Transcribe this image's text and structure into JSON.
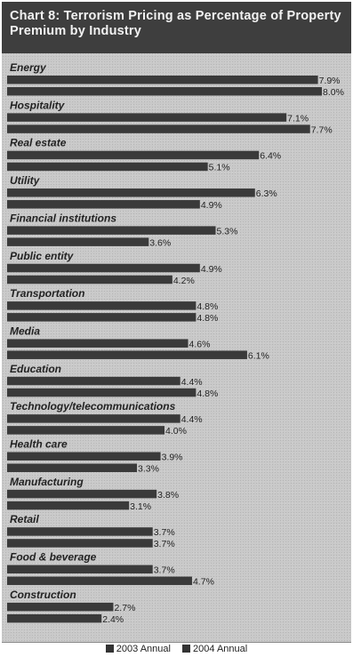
{
  "chart_data": {
    "type": "bar",
    "orientation": "horizontal",
    "title": "Chart 8: Terrorism Pricing as Percentage of Property Premium by Industry",
    "categories": [
      "Energy",
      "Hospitality",
      "Real estate",
      "Utility",
      "Financial institutions",
      "Public entity",
      "Transportation",
      "Media",
      "Education",
      "Technology/telecommunications",
      "Health care",
      "Manufacturing",
      "Retail",
      "Food & beverage",
      "Construction"
    ],
    "series": [
      {
        "name": "2003 Annual",
        "values": [
          7.9,
          7.1,
          6.4,
          6.3,
          5.3,
          4.9,
          4.8,
          4.6,
          4.4,
          4.4,
          3.9,
          3.8,
          3.7,
          3.7,
          2.7
        ]
      },
      {
        "name": "2004 Annual",
        "values": [
          8.0,
          7.7,
          5.1,
          4.9,
          3.6,
          4.2,
          4.8,
          6.1,
          4.8,
          4.0,
          3.3,
          3.1,
          3.7,
          4.7,
          2.4
        ]
      }
    ],
    "value_labels": [
      [
        "7.9%",
        "7.1%",
        "6.4%",
        "6.3%",
        "5.3%",
        "4.9%",
        "4.8%",
        "4.6%",
        "4.4%",
        "4.4%",
        "3.9%",
        "3.8%",
        "3.7%",
        "3.7%",
        "2.7%"
      ],
      [
        "8.0%",
        "7.7%",
        "5.1%",
        "4.9%",
        "3.6%",
        "4.2%",
        "4.8%",
        "6.1%",
        "4.8%",
        "4.0%",
        "3.3%",
        "3.1%",
        "3.7%",
        "4.7%",
        "2.4%"
      ]
    ],
    "xlim": [
      0,
      8.0
    ],
    "grid": false,
    "legend": "bottom"
  },
  "colors": {
    "bar": "#3a3a3a",
    "title_background": "#3e3e3e",
    "title_text": "#f2f2f2"
  }
}
